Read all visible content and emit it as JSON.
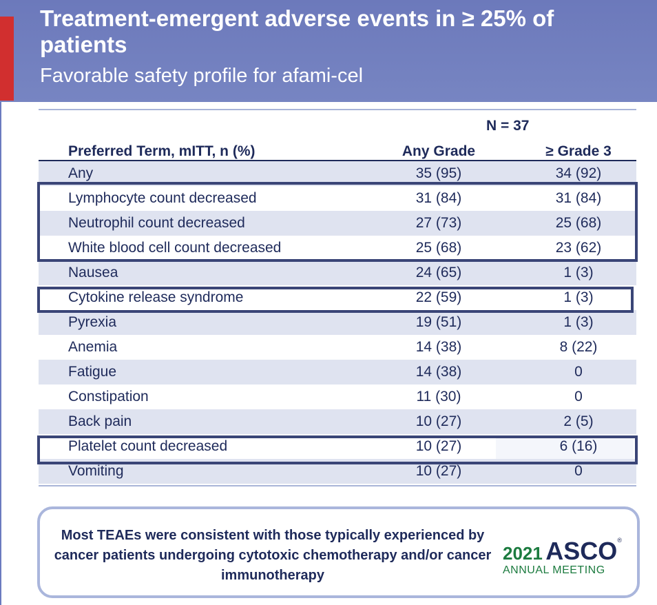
{
  "header": {
    "title": "Treatment-emergent adverse events in ≥ 25% of patients",
    "subtitle": "Favorable safety profile for afami-cel"
  },
  "table": {
    "n_label": "N = 37",
    "columns": [
      "Preferred Term, mITT,  n (%)",
      "Any Grade",
      "≥ Grade 3"
    ],
    "rows": [
      {
        "term": "Any",
        "any_grade": "35 (95)",
        "grade3": "34 (92)"
      },
      {
        "term": "Lymphocyte count decreased",
        "any_grade": "31 (84)",
        "grade3": "31 (84)"
      },
      {
        "term": "Neutrophil count decreased",
        "any_grade": "27 (73)",
        "grade3": "25 (68)"
      },
      {
        "term": "White blood cell count decreased",
        "any_grade": "25 (68)",
        "grade3": "23 (62)"
      },
      {
        "term": "Nausea",
        "any_grade": "24 (65)",
        "grade3": "1 (3)"
      },
      {
        "term": "Cytokine release syndrome",
        "any_grade": "22 (59)",
        "grade3": "1 (3)"
      },
      {
        "term": "Pyrexia",
        "any_grade": "19 (51)",
        "grade3": "1 (3)"
      },
      {
        "term": "Anemia",
        "any_grade": "14 (38)",
        "grade3": "8 (22)"
      },
      {
        "term": "Fatigue",
        "any_grade": "14 (38)",
        "grade3": "0"
      },
      {
        "term": "Constipation",
        "any_grade": "11 (30)",
        "grade3": "0"
      },
      {
        "term": "Back pain",
        "any_grade": "10 (27)",
        "grade3": "2 (5)"
      },
      {
        "term": "Platelet count decreased",
        "any_grade": "10 (27)",
        "grade3": "6 (16)"
      },
      {
        "term": "Vomiting",
        "any_grade": "10 (27)",
        "grade3": "0"
      }
    ]
  },
  "callout": {
    "text": "Most TEAEs were consistent with those typically experienced by cancer patients undergoing cytotoxic chemotherapy and/or cancer immunotherapy"
  },
  "logo": {
    "year": "2021",
    "name": "ASCO",
    "subtitle": "ANNUAL MEETING"
  },
  "colors": {
    "header_bg": "#7080c0",
    "accent_red": "#d12f2f",
    "text_navy": "#1e2a5a",
    "row_alt": "#dfe3f0",
    "logo_green": "#1c7b3f"
  }
}
